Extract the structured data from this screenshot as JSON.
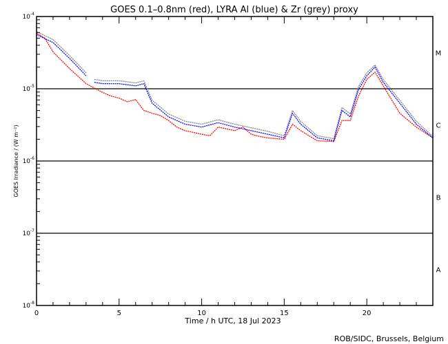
{
  "chart_data": {
    "type": "line",
    "title": "GOES 0.1–0.8nm (red), LYRA Al (blue) & Zr (grey) proxy",
    "xlabel": "Time / h UTC, 18 Jul 2023",
    "ylabel": "GOES Irradiance / (W m⁻²)",
    "xlim": [
      0,
      24
    ],
    "ylim_log10": [
      -8,
      -4
    ],
    "yscale": "log",
    "x_ticks": [
      "0",
      "5",
      "10",
      "15",
      "20"
    ],
    "y_ticks": [
      {
        "base": "10",
        "exp": "-4"
      },
      {
        "base": "10",
        "exp": "-5"
      },
      {
        "base": "10",
        "exp": "-6"
      },
      {
        "base": "10",
        "exp": "-7"
      },
      {
        "base": "10",
        "exp": "-8"
      }
    ],
    "flare_classes": [
      {
        "label": "M",
        "log10_center": -4.5
      },
      {
        "label": "C",
        "log10_center": -5.5
      },
      {
        "label": "B",
        "log10_center": -6.5
      },
      {
        "label": "A",
        "log10_center": -7.5
      }
    ],
    "class_lines_log10": [
      -5,
      -6,
      -7
    ],
    "series": [
      {
        "name": "GOES 0.1-0.8nm",
        "color": "#ff0000",
        "segments": [
          {
            "t": [
              0,
              0.5,
              1,
              2,
              3,
              3.5,
              4,
              4.5,
              5,
              5.5,
              6,
              6.5,
              7,
              7.5,
              8,
              8.5,
              9,
              10,
              10.5,
              11,
              12,
              12.5,
              13,
              13.5,
              14,
              15,
              15.5,
              16,
              17,
              18,
              18.5,
              19,
              19.5,
              20,
              20.5,
              21,
              22,
              23,
              24
            ],
            "log10_flux": [
              -4.23,
              -4.3,
              -4.49,
              -4.72,
              -4.93,
              -4.99,
              -5.05,
              -5.1,
              -5.13,
              -5.18,
              -5.15,
              -5.3,
              -5.34,
              -5.37,
              -5.44,
              -5.53,
              -5.58,
              -5.63,
              -5.65,
              -5.53,
              -5.58,
              -5.53,
              -5.63,
              -5.66,
              -5.68,
              -5.7,
              -5.49,
              -5.58,
              -5.72,
              -5.73,
              -5.44,
              -5.44,
              -5.1,
              -4.87,
              -4.77,
              -4.96,
              -5.34,
              -5.53,
              -5.68
            ]
          }
        ]
      },
      {
        "name": "LYRA Zr proxy",
        "color": "#808080",
        "segments": [
          {
            "t": [
              0,
              1,
              2,
              3
            ],
            "log10_flux": [
              -4.21,
              -4.32,
              -4.54,
              -4.78
            ]
          },
          {
            "t": [
              3.5,
              4,
              5,
              6,
              6.5,
              7,
              8,
              9,
              10,
              11,
              12,
              13,
              14,
              15,
              15.5,
              16,
              17,
              18,
              18.5,
              19,
              19.5,
              20,
              20.5,
              21,
              22,
              23,
              24
            ],
            "log10_flux": [
              -4.87,
              -4.89,
              -4.89,
              -4.92,
              -4.89,
              -5.16,
              -5.35,
              -5.45,
              -5.49,
              -5.43,
              -5.49,
              -5.54,
              -5.59,
              -5.65,
              -5.3,
              -5.45,
              -5.65,
              -5.69,
              -5.26,
              -5.35,
              -4.97,
              -4.78,
              -4.67,
              -4.87,
              -5.16,
              -5.45,
              -5.66
            ]
          }
        ]
      },
      {
        "name": "LYRA Al proxy",
        "color": "#0000ff",
        "segments": [
          {
            "t": [
              0,
              1,
              2,
              3
            ],
            "log10_flux": [
              -4.25,
              -4.36,
              -4.58,
              -4.82
            ]
          },
          {
            "t": [
              3.5,
              4,
              5,
              6,
              6.5,
              7,
              8,
              9,
              10,
              11,
              12,
              13,
              14,
              15,
              15.5,
              16,
              17,
              18,
              18.5,
              19,
              19.5,
              20,
              20.5,
              21,
              22,
              23,
              24
            ],
            "log10_flux": [
              -4.91,
              -4.93,
              -4.93,
              -4.96,
              -4.93,
              -5.2,
              -5.39,
              -5.49,
              -5.53,
              -5.47,
              -5.53,
              -5.58,
              -5.63,
              -5.68,
              -5.34,
              -5.49,
              -5.68,
              -5.72,
              -5.3,
              -5.39,
              -5.01,
              -4.82,
              -4.7,
              -4.91,
              -5.2,
              -5.49,
              -5.68
            ]
          }
        ]
      }
    ],
    "credit": "ROB/SIDC, Brussels, Belgium"
  }
}
